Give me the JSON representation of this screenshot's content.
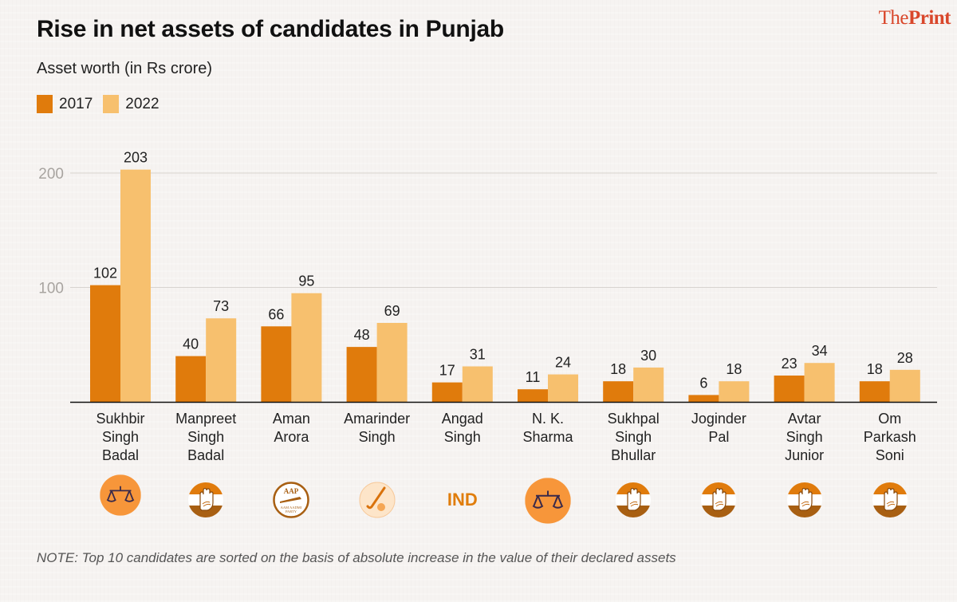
{
  "header": {
    "title": "Rise in net assets of candidates in Punjab",
    "brand_light": "The",
    "brand_bold": "Print",
    "subtitle": "Asset worth (in Rs crore)"
  },
  "colors": {
    "series_2017": "#e07b0c",
    "series_2022": "#f7c06e",
    "brand": "#d9472b",
    "party_orange": "#f7963a",
    "text": "#222222",
    "grid": "#d8d4d0",
    "axis_label": "#a8a4a0"
  },
  "chart_data": {
    "type": "bar",
    "title": "Rise in net assets of candidates in Punjab",
    "subtitle": "Asset worth (in Rs crore)",
    "xlabel": "",
    "ylabel": "Asset worth (in Rs crore)",
    "ylim": [
      0,
      210
    ],
    "yticks": [
      100,
      200
    ],
    "ytick_labels": [
      "100",
      "200"
    ],
    "grid": true,
    "legend_position": "top-left",
    "categories": [
      "Sukhbir Singh Badal",
      "Manpreet Singh Badal",
      "Aman Arora",
      "Amarinder Singh",
      "Angad Singh",
      "N. K. Sharma",
      "Sukhpal Singh Bhullar",
      "Joginder Pal",
      "Avtar Singh Junior",
      "Om Parkash Soni"
    ],
    "category_lines": [
      [
        "Sukhbir",
        "Singh",
        "Badal"
      ],
      [
        "Manpreet",
        "Singh",
        "Badal"
      ],
      [
        "Aman",
        "Arora"
      ],
      [
        "Amarinder",
        "Singh"
      ],
      [
        "Angad",
        "Singh"
      ],
      [
        "N. K.",
        "Sharma"
      ],
      [
        "Sukhpal",
        "Singh",
        "Bhullar"
      ],
      [
        "Joginder",
        "Pal"
      ],
      [
        "Avtar",
        "Singh",
        "Junior"
      ],
      [
        "Om",
        "Parkash",
        "Soni"
      ]
    ],
    "series": [
      {
        "name": "2017",
        "values": [
          102,
          40,
          66,
          48,
          17,
          11,
          18,
          6,
          23,
          18
        ]
      },
      {
        "name": "2022",
        "values": [
          203,
          73,
          95,
          69,
          31,
          24,
          30,
          18,
          34,
          28
        ]
      }
    ],
    "parties": [
      "scales",
      "hand",
      "aap",
      "hockey",
      "IND",
      "scales",
      "hand",
      "hand",
      "hand",
      "hand"
    ],
    "party_labels": [
      "SAD",
      "INC",
      "AAP",
      "PLC",
      "IND",
      "SAD",
      "INC",
      "INC",
      "INC",
      "INC"
    ],
    "ind_text": "IND"
  },
  "note": "NOTE: Top 10 candidates are sorted on the basis of absolute increase in the value of their declared assets"
}
